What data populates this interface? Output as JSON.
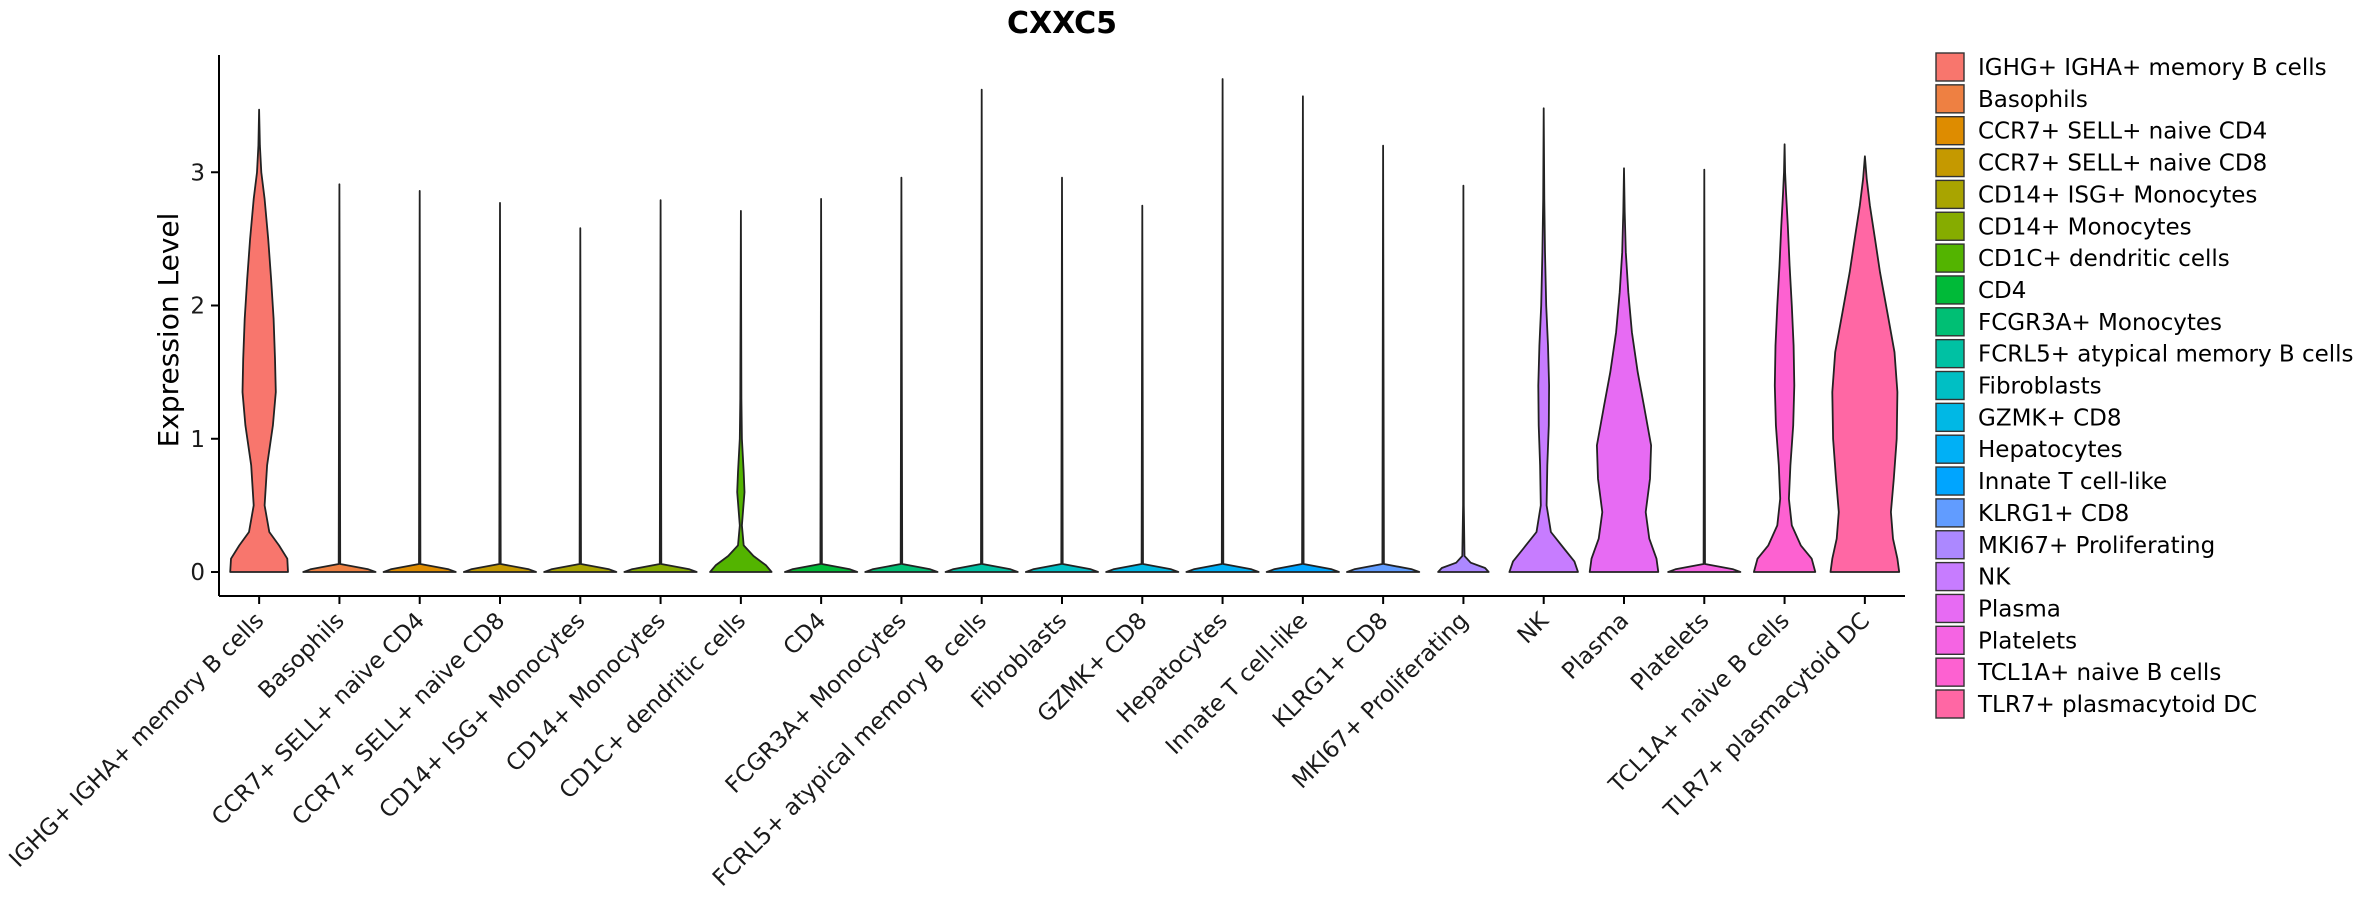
{
  "chart_data": {
    "type": "violin",
    "title": "CXXC5",
    "xlabel": "",
    "ylabel": "Expression Level",
    "ylim": [
      -0.18,
      3.88
    ],
    "yticks": [
      0,
      1,
      2,
      3
    ],
    "categories": [
      "IGHG+ IGHA+ memory B cells",
      "Basophils",
      "CCR7+ SELL+ naive CD4",
      "CCR7+ SELL+ naive CD8",
      "CD14+ ISG+ Monocytes",
      "CD14+ Monocytes",
      "CD1C+ dendritic cells",
      "CD4",
      "FCGR3A+ Monocytes",
      "FCRL5+ atypical memory B cells",
      "Fibroblasts",
      "GZMK+ CD8",
      "Hepatocytes",
      "Innate T cell-like",
      "KLRG1+ CD8",
      "MKI67+ Proliferating",
      "NK",
      "Plasma",
      "Platelets",
      "TCL1A+ naive B cells",
      "TLR7+ plasmacytoid DC"
    ],
    "legend_labels": [
      " IGHG+ IGHA+ memory B cells",
      "Basophils",
      "CCR7+ SELL+ naive CD4",
      "CCR7+ SELL+ naive CD8",
      "CD14+ ISG+ Monocytes",
      "CD14+ Monocytes",
      "CD1C+ dendritic cells",
      "CD4",
      "FCGR3A+ Monocytes",
      "FCRL5+ atypical memory B cells",
      "Fibroblasts",
      "GZMK+ CD8",
      "Hepatocytes",
      "Innate T cell-like",
      "KLRG1+ CD8",
      "MKI67+ Proliferating",
      "NK",
      "Plasma",
      "Platelets",
      "TCL1A+ naive B cells",
      "TLR7+ plasmacytoid DC"
    ],
    "colors": [
      "#F8766D",
      "#EE8042",
      "#DE8C00",
      "#C59900",
      "#A9A400",
      "#86AC00",
      "#53B400",
      "#00BA38",
      "#00BF74",
      "#00C1A3",
      "#00BFC4",
      "#00B8E5",
      "#00B0F6",
      "#00A5FF",
      "#619CFF",
      "#AC88FF",
      "#C77CFF",
      "#E76BF3",
      "#F564E3",
      "#FD61D1",
      "#FF67A4"
    ],
    "violins": [
      {
        "max": 3.47,
        "profile": [
          [
            0,
            0.8
          ],
          [
            0.1,
            0.78
          ],
          [
            0.2,
            0.55
          ],
          [
            0.3,
            0.28
          ],
          [
            0.5,
            0.15
          ],
          [
            0.8,
            0.22
          ],
          [
            1.1,
            0.38
          ],
          [
            1.35,
            0.46
          ],
          [
            1.6,
            0.44
          ],
          [
            1.9,
            0.4
          ],
          [
            2.2,
            0.33
          ],
          [
            2.5,
            0.25
          ],
          [
            2.8,
            0.15
          ],
          [
            3.0,
            0.06
          ],
          [
            3.2,
            0.02
          ],
          [
            3.47,
            0.0
          ]
        ]
      },
      {
        "max": 2.91,
        "profile": [
          [
            0,
            1.0
          ],
          [
            0.02,
            0.8
          ],
          [
            0.06,
            0.02
          ],
          [
            2.91,
            0.0
          ]
        ]
      },
      {
        "max": 2.86,
        "profile": [
          [
            0,
            1.0
          ],
          [
            0.02,
            0.8
          ],
          [
            0.06,
            0.02
          ],
          [
            2.86,
            0.0
          ]
        ]
      },
      {
        "max": 2.77,
        "profile": [
          [
            0,
            1.0
          ],
          [
            0.02,
            0.8
          ],
          [
            0.06,
            0.02
          ],
          [
            2.77,
            0.0
          ]
        ]
      },
      {
        "max": 2.58,
        "profile": [
          [
            0,
            1.0
          ],
          [
            0.02,
            0.8
          ],
          [
            0.06,
            0.02
          ],
          [
            2.58,
            0.0
          ]
        ]
      },
      {
        "max": 2.79,
        "profile": [
          [
            0,
            1.0
          ],
          [
            0.02,
            0.8
          ],
          [
            0.06,
            0.02
          ],
          [
            2.79,
            0.0
          ]
        ]
      },
      {
        "max": 2.71,
        "profile": [
          [
            0,
            0.85
          ],
          [
            0.05,
            0.7
          ],
          [
            0.12,
            0.35
          ],
          [
            0.2,
            0.08
          ],
          [
            0.35,
            0.03
          ],
          [
            0.6,
            0.1
          ],
          [
            0.75,
            0.08
          ],
          [
            1.0,
            0.03
          ],
          [
            1.3,
            0.015
          ],
          [
            2.71,
            0.0
          ]
        ]
      },
      {
        "max": 2.8,
        "profile": [
          [
            0,
            1.0
          ],
          [
            0.02,
            0.8
          ],
          [
            0.06,
            0.02
          ],
          [
            2.8,
            0.0
          ]
        ]
      },
      {
        "max": 2.96,
        "profile": [
          [
            0,
            1.0
          ],
          [
            0.02,
            0.8
          ],
          [
            0.06,
            0.02
          ],
          [
            2.96,
            0.0
          ]
        ]
      },
      {
        "max": 3.62,
        "profile": [
          [
            0,
            1.0
          ],
          [
            0.02,
            0.8
          ],
          [
            0.06,
            0.02
          ],
          [
            3.62,
            0.0
          ]
        ]
      },
      {
        "max": 2.96,
        "profile": [
          [
            0,
            1.0
          ],
          [
            0.02,
            0.8
          ],
          [
            0.06,
            0.02
          ],
          [
            2.96,
            0.0
          ]
        ]
      },
      {
        "max": 2.75,
        "profile": [
          [
            0,
            1.0
          ],
          [
            0.02,
            0.8
          ],
          [
            0.06,
            0.02
          ],
          [
            2.75,
            0.0
          ]
        ]
      },
      {
        "max": 3.7,
        "profile": [
          [
            0,
            1.0
          ],
          [
            0.02,
            0.8
          ],
          [
            0.06,
            0.02
          ],
          [
            3.7,
            0.0
          ]
        ]
      },
      {
        "max": 3.57,
        "profile": [
          [
            0,
            1.0
          ],
          [
            0.02,
            0.8
          ],
          [
            0.06,
            0.02
          ],
          [
            3.57,
            0.0
          ]
        ]
      },
      {
        "max": 3.2,
        "profile": [
          [
            0,
            1.0
          ],
          [
            0.02,
            0.8
          ],
          [
            0.06,
            0.02
          ],
          [
            3.2,
            0.0
          ]
        ]
      },
      {
        "max": 2.9,
        "profile": [
          [
            0,
            0.7
          ],
          [
            0.03,
            0.6
          ],
          [
            0.07,
            0.2
          ],
          [
            0.12,
            0.03
          ],
          [
            0.5,
            0.01
          ],
          [
            2.9,
            0.0
          ]
        ]
      },
      {
        "max": 3.48,
        "profile": [
          [
            0,
            0.95
          ],
          [
            0.08,
            0.85
          ],
          [
            0.18,
            0.55
          ],
          [
            0.3,
            0.2
          ],
          [
            0.5,
            0.08
          ],
          [
            0.8,
            0.1
          ],
          [
            1.1,
            0.14
          ],
          [
            1.4,
            0.15
          ],
          [
            1.7,
            0.12
          ],
          [
            2.0,
            0.07
          ],
          [
            2.4,
            0.035
          ],
          [
            2.8,
            0.015
          ],
          [
            3.48,
            0.0
          ]
        ]
      },
      {
        "max": 3.03,
        "profile": [
          [
            0,
            0.95
          ],
          [
            0.1,
            0.9
          ],
          [
            0.25,
            0.7
          ],
          [
            0.45,
            0.6
          ],
          [
            0.7,
            0.72
          ],
          [
            0.95,
            0.75
          ],
          [
            1.25,
            0.55
          ],
          [
            1.5,
            0.38
          ],
          [
            1.8,
            0.22
          ],
          [
            2.1,
            0.12
          ],
          [
            2.4,
            0.05
          ],
          [
            2.7,
            0.02
          ],
          [
            3.03,
            0.0
          ]
        ]
      },
      {
        "max": 3.02,
        "profile": [
          [
            0,
            1.0
          ],
          [
            0.02,
            0.8
          ],
          [
            0.06,
            0.02
          ],
          [
            3.02,
            0.0
          ]
        ]
      },
      {
        "max": 3.21,
        "profile": [
          [
            0,
            0.85
          ],
          [
            0.1,
            0.75
          ],
          [
            0.2,
            0.45
          ],
          [
            0.35,
            0.2
          ],
          [
            0.55,
            0.12
          ],
          [
            0.8,
            0.16
          ],
          [
            1.1,
            0.24
          ],
          [
            1.4,
            0.27
          ],
          [
            1.7,
            0.25
          ],
          [
            2.0,
            0.2
          ],
          [
            2.3,
            0.14
          ],
          [
            2.6,
            0.09
          ],
          [
            2.85,
            0.04
          ],
          [
            3.0,
            0.015
          ],
          [
            3.21,
            0.0
          ]
        ]
      },
      {
        "max": 3.12,
        "profile": [
          [
            0,
            0.95
          ],
          [
            0.1,
            0.9
          ],
          [
            0.25,
            0.78
          ],
          [
            0.45,
            0.72
          ],
          [
            0.7,
            0.8
          ],
          [
            1.0,
            0.88
          ],
          [
            1.35,
            0.9
          ],
          [
            1.65,
            0.82
          ],
          [
            1.95,
            0.62
          ],
          [
            2.25,
            0.42
          ],
          [
            2.5,
            0.28
          ],
          [
            2.75,
            0.14
          ],
          [
            2.95,
            0.05
          ],
          [
            3.12,
            0.0
          ]
        ]
      }
    ]
  }
}
